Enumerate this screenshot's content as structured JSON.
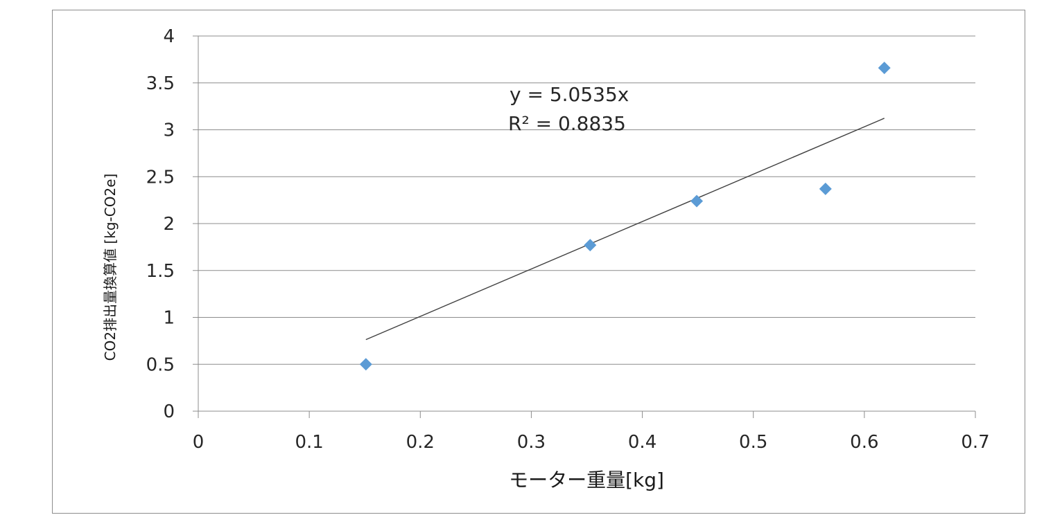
{
  "chart_data": {
    "type": "scatter",
    "title": "",
    "xlabel": "モーター重量[kg]",
    "ylabel": "CO2排出量換算値 [kg-CO2e]",
    "xlim": [
      0,
      0.7
    ],
    "ylim": [
      0,
      4
    ],
    "x_ticks": [
      "0",
      "0.1",
      "0.2",
      "0.3",
      "0.4",
      "0.5",
      "0.6",
      "0.7"
    ],
    "y_ticks": [
      "0",
      "0.5",
      "1",
      "1.5",
      "2",
      "2.5",
      "3",
      "3.5",
      "4"
    ],
    "grid": "horizontal",
    "legend": "none",
    "series": [
      {
        "x": [
          0.151,
          0.353,
          0.449,
          0.565,
          0.618
        ],
        "y": [
          0.5,
          1.77,
          2.24,
          2.37,
          3.66
        ],
        "marker": "diamond",
        "color": "#5b9bd5"
      }
    ],
    "trendline": {
      "type": "linear-through-origin",
      "slope": 5.0535,
      "x_range": [
        0.151,
        0.618
      ],
      "color": "#404040",
      "equation": "y = 5.0535x",
      "r_squared": "R² = 0.8835"
    }
  }
}
